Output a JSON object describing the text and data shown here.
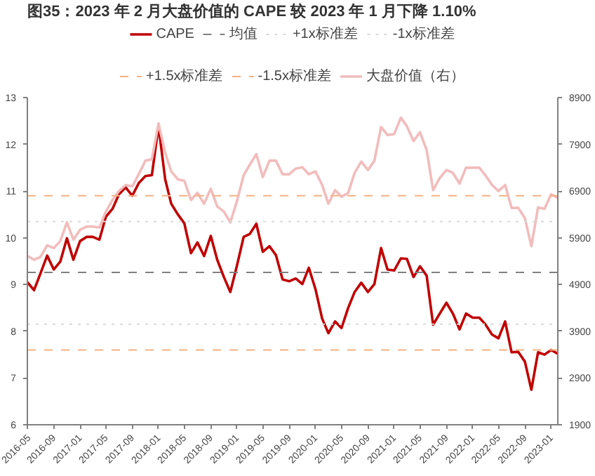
{
  "chart_data": {
    "type": "line",
    "title": "图35：2023 年 2 月大盘价值的 CAPE 较 2023 年 1 月下降 1.10%",
    "x": [
      "2016-05",
      "2016-06",
      "2016-07",
      "2016-08",
      "2016-09",
      "2016-10",
      "2016-11",
      "2016-12",
      "2017-01",
      "2017-02",
      "2017-03",
      "2017-04",
      "2017-05",
      "2017-06",
      "2017-07",
      "2017-08",
      "2017-09",
      "2017-10",
      "2017-11",
      "2017-12",
      "2018-01",
      "2018-02",
      "2018-03",
      "2018-04",
      "2018-05",
      "2018-06",
      "2018-07",
      "2018-08",
      "2018-09",
      "2018-10",
      "2018-11",
      "2018-12",
      "2019-01",
      "2019-02",
      "2019-03",
      "2019-04",
      "2019-05",
      "2019-06",
      "2019-07",
      "2019-08",
      "2019-09",
      "2019-10",
      "2019-11",
      "2019-12",
      "2020-01",
      "2020-02",
      "2020-03",
      "2020-04",
      "2020-05",
      "2020-06",
      "2020-07",
      "2020-08",
      "2020-09",
      "2020-10",
      "2020-11",
      "2020-12",
      "2021-01",
      "2021-02",
      "2021-03",
      "2021-04",
      "2021-05",
      "2021-06",
      "2021-07",
      "2021-08",
      "2021-09",
      "2021-10",
      "2021-11",
      "2021-12",
      "2022-01",
      "2022-02",
      "2022-03",
      "2022-04",
      "2022-05",
      "2022-06",
      "2022-07",
      "2022-08",
      "2022-09",
      "2022-10",
      "2022-11",
      "2022-12",
      "2023-01",
      "2023-02"
    ],
    "series": [
      {
        "name": "CAPE",
        "color": "#c00000",
        "values": [
          9.05,
          8.88,
          9.24,
          9.62,
          9.32,
          9.49,
          9.99,
          9.53,
          9.93,
          10.02,
          10.02,
          9.96,
          10.45,
          10.62,
          10.93,
          11.08,
          10.9,
          11.17,
          11.32,
          11.34,
          12.39,
          11.25,
          10.73,
          10.5,
          10.31,
          9.67,
          9.9,
          9.61,
          10.04,
          9.53,
          9.16,
          8.84,
          9.41,
          10.02,
          10.08,
          10.3,
          9.7,
          9.82,
          9.63,
          9.11,
          9.07,
          9.13,
          9.01,
          9.36,
          8.9,
          8.27,
          7.96,
          8.21,
          8.07,
          8.5,
          8.84,
          9.04,
          8.84,
          9.01,
          9.78,
          9.32,
          9.3,
          9.56,
          9.55,
          9.16,
          9.39,
          9.19,
          8.14,
          8.38,
          8.61,
          8.38,
          8.04,
          8.38,
          8.29,
          8.29,
          8.15,
          7.93,
          7.85,
          8.21,
          7.55,
          7.56,
          7.35,
          6.75,
          7.55,
          7.5,
          7.6,
          7.52
        ]
      },
      {
        "name": "大盘价值（右）",
        "color": "#f2bcbc",
        "axis": "y2",
        "values": [
          5510,
          5430,
          5490,
          5740,
          5680,
          5830,
          6230,
          5860,
          6070,
          6140,
          6140,
          6120,
          6460,
          6710,
          6900,
          7030,
          7000,
          7260,
          7550,
          7580,
          8350,
          7720,
          7320,
          7150,
          7120,
          6710,
          6860,
          6630,
          6950,
          6570,
          6460,
          6230,
          6690,
          7240,
          7460,
          7690,
          7200,
          7550,
          7550,
          7260,
          7260,
          7380,
          7410,
          7260,
          7320,
          7030,
          6630,
          6920,
          6780,
          6860,
          7290,
          7530,
          7350,
          7550,
          8270,
          8100,
          8120,
          8470,
          8290,
          7970,
          8160,
          7780,
          6920,
          7180,
          7350,
          7290,
          7060,
          7400,
          7400,
          7400,
          7240,
          7030,
          6900,
          7030,
          6540,
          6540,
          6320,
          5720,
          6550,
          6520,
          6830,
          6750
        ]
      }
    ],
    "ref_lines": [
      {
        "axis": "y",
        "value": 9.26,
        "label": "均值",
        "color": "#808080",
        "line_style": "dashed"
      },
      {
        "axis": "y",
        "value": 10.35,
        "label": "+1x标准差",
        "color": "#d9d9d9",
        "line_style": "dotted"
      },
      {
        "axis": "y",
        "value": 8.15,
        "label": "-1x标准差",
        "color": "#d9d9d9",
        "line_style": "dotted"
      },
      {
        "axis": "y",
        "value": 10.9,
        "label": "+1.5x标准差",
        "color": "#f4b183",
        "line_style": "dashed"
      },
      {
        "axis": "y",
        "value": 7.6,
        "label": "-1.5x标准差",
        "color": "#f4b183",
        "line_style": "dashed"
      }
    ],
    "xlim": [
      "2016-05",
      "2023-02"
    ],
    "xticks": [
      "2016-05",
      "2016-09",
      "2017-01",
      "2017-05",
      "2017-09",
      "2018-01",
      "2018-05",
      "2018-09",
      "2019-01",
      "2019-05",
      "2019-09",
      "2020-01",
      "2020-05",
      "2020-09",
      "2021-01",
      "2021-05",
      "2021-09",
      "2022-01",
      "2022-05",
      "2022-09",
      "2023-01"
    ],
    "ylim": [
      6,
      13
    ],
    "yticks": [
      6,
      7,
      8,
      9,
      10,
      11,
      12,
      13
    ],
    "y2lim": [
      1900,
      8900
    ],
    "y2ticks": [
      1900,
      2900,
      3900,
      4900,
      5900,
      6900,
      7900,
      8900
    ],
    "grid": false,
    "legend": "top",
    "line_style": "solid",
    "marker": "none"
  }
}
